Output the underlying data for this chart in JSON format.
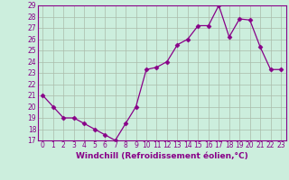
{
  "x": [
    0,
    1,
    2,
    3,
    4,
    5,
    6,
    7,
    8,
    9,
    10,
    11,
    12,
    13,
    14,
    15,
    16,
    17,
    18,
    19,
    20,
    21,
    22,
    23
  ],
  "y": [
    21,
    20,
    19,
    19,
    18.5,
    18,
    17.5,
    17,
    18.5,
    20,
    23.3,
    23.5,
    24,
    25.5,
    26,
    27.2,
    27.2,
    29,
    26.2,
    27.8,
    27.7,
    25.3,
    23.3,
    23.3
  ],
  "line_color": "#880088",
  "marker": "D",
  "marker_size": 2.5,
  "bg_color": "#cceedd",
  "grid_color": "#aabbaa",
  "xlabel": "Windchill (Refroidissement éolien,°C)",
  "ylim": [
    17,
    29
  ],
  "xlim": [
    -0.5,
    23.5
  ],
  "yticks": [
    17,
    18,
    19,
    20,
    21,
    22,
    23,
    24,
    25,
    26,
    27,
    28,
    29
  ],
  "xticks": [
    0,
    1,
    2,
    3,
    4,
    5,
    6,
    7,
    8,
    9,
    10,
    11,
    12,
    13,
    14,
    15,
    16,
    17,
    18,
    19,
    20,
    21,
    22,
    23
  ],
  "tick_fontsize": 5.5,
  "xlabel_fontsize": 6.5,
  "line_color_hex": "#880088",
  "tick_color": "#880088",
  "spine_color": "#880088"
}
